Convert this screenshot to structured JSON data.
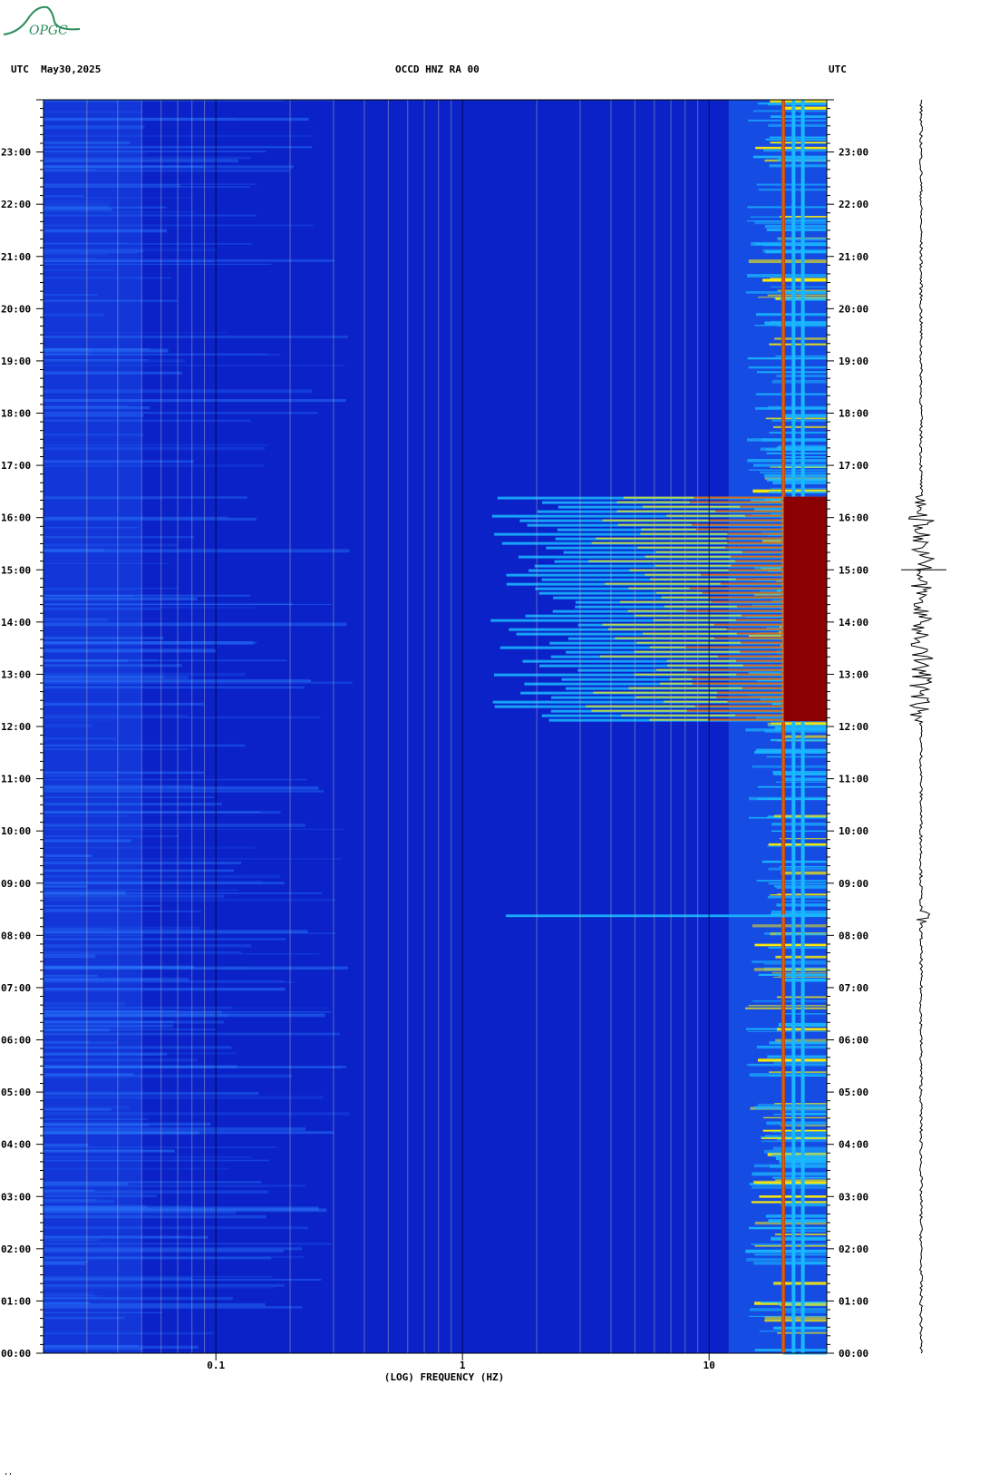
{
  "header": {
    "left": "UTC  May30,2025",
    "center": "OCCD HNZ RA 00",
    "right": "UTC"
  },
  "logo": {
    "text": "OPGC",
    "color": "#2b8c5a"
  },
  "footnote": "’’",
  "colors": {
    "background": "#0a22c8",
    "quiet": "#1236d8",
    "active_low": "#1ab8ff",
    "active_mid": "#ffee00",
    "active_high": "#8b0000",
    "tremor_line": "#c84a00"
  },
  "chart_data": {
    "type": "heatmap",
    "title": "OCCD HNZ RA 00",
    "xlabel": "(LOG) FREQUENCY (HZ)",
    "x_scale": "log",
    "xlim": [
      0.02,
      30
    ],
    "x_ticks": [
      {
        "value": 0.1,
        "label": "0.1"
      },
      {
        "value": 1,
        "label": "1"
      },
      {
        "value": 10,
        "label": "10"
      }
    ],
    "ylabel": "UTC",
    "ylim_hours": [
      0,
      24
    ],
    "y_ticks": [
      {
        "hour": 23,
        "label": "23:00"
      },
      {
        "hour": 22,
        "label": "22:00"
      },
      {
        "hour": 21,
        "label": "21:00"
      },
      {
        "hour": 20,
        "label": "20:00"
      },
      {
        "hour": 19,
        "label": "19:00"
      },
      {
        "hour": 18,
        "label": "18:00"
      },
      {
        "hour": 17,
        "label": "17:00"
      },
      {
        "hour": 16,
        "label": "16:00"
      },
      {
        "hour": 15,
        "label": "15:00"
      },
      {
        "hour": 14,
        "label": "14:00"
      },
      {
        "hour": 13,
        "label": "13:00"
      },
      {
        "hour": 12,
        "label": "12:00"
      },
      {
        "hour": 11,
        "label": "11:00"
      },
      {
        "hour": 10,
        "label": "10:00"
      },
      {
        "hour": 9,
        "label": "09:00"
      },
      {
        "hour": 8,
        "label": "08:00"
      },
      {
        "hour": 7,
        "label": "07:00"
      },
      {
        "hour": 6,
        "label": "06:00"
      },
      {
        "hour": 5,
        "label": "05:00"
      },
      {
        "hour": 4,
        "label": "04:00"
      },
      {
        "hour": 3,
        "label": "03:00"
      },
      {
        "hour": 2,
        "label": "02:00"
      },
      {
        "hour": 1,
        "label": "01:00"
      },
      {
        "hour": 0,
        "label": "00:00"
      }
    ],
    "events": [
      {
        "name": "strong broadband signal",
        "start_hour": 12.1,
        "end_hour": 16.4,
        "min_freq_hz": 1.3,
        "max_freq_hz": 30
      },
      {
        "name": "short event",
        "start_hour": 8.35,
        "end_hour": 8.4,
        "min_freq_hz": 1.5,
        "max_freq_hz": 30
      }
    ],
    "persistent_lines_hz": [
      20,
      22,
      24
    ]
  }
}
